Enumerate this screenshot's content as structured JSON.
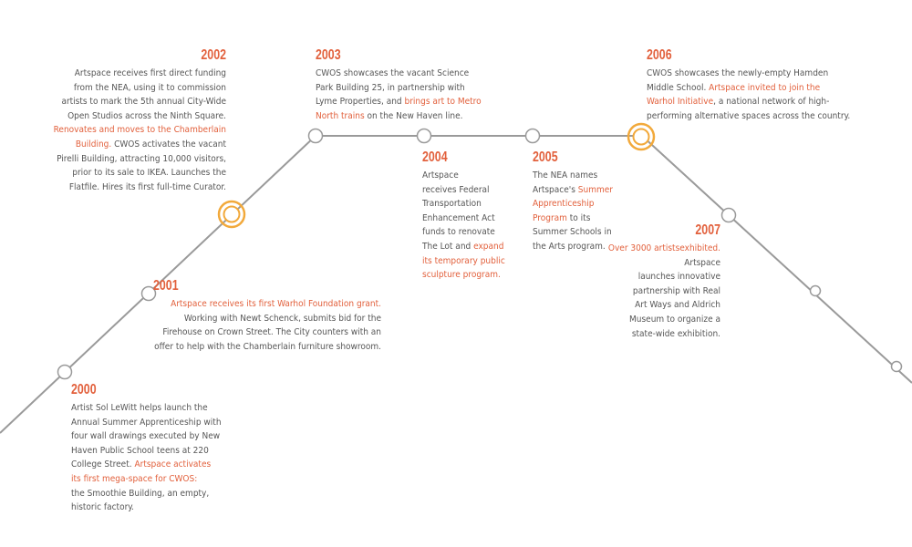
{
  "colors": {
    "line": "#9a9a9a",
    "node_stroke": "#9a9a9a",
    "node_fill": "#ffffff",
    "highlight_ring": "#f2a93b",
    "year": "#e2603c",
    "text": "#565656",
    "highlight_text": "#e2603c"
  },
  "milestones": [
    {
      "year": "2000",
      "segments": [
        {
          "t": "Artist Sol LeWitt helps launch the"
        },
        {
          "t": "Annual Summer Apprenticeship with"
        },
        {
          "t": "four wall drawings executed by New"
        },
        {
          "t": "Haven Public School teens at 220"
        },
        {
          "t": "College Street. "
        },
        {
          "t": "Artspace activates",
          "hl": true
        },
        {
          "t": "its first mega-space for CWOS:",
          "hl": true
        },
        {
          "t": "the Smoothie Building, an empty,"
        },
        {
          "t": "historic factory."
        }
      ]
    },
    {
      "year": "2001",
      "segments": [
        {
          "t": "Artspace receives its first Warhol Foundation grant.",
          "hl": true
        },
        {
          "t": "Working with Newt Schenck, submits bid for the"
        },
        {
          "t": "Firehouse on Crown Street. The City counters with an"
        },
        {
          "t": "offer to help with the Chamberlain furniture showroom."
        }
      ]
    },
    {
      "year": "2002",
      "segments": [
        {
          "t": "Artspace receives first direct funding"
        },
        {
          "t": "from the NEA, using it to commission"
        },
        {
          "t": "artists to mark the 5th annual City-Wide"
        },
        {
          "t": "Open Studios across the Ninth Square."
        },
        {
          "t": "Renovates and moves to the Chamberlain",
          "hl": true
        },
        {
          "t": "Building.",
          "hl": true
        },
        {
          "t": " CWOS activates the vacant"
        },
        {
          "t": "Pirelli Building, attracting 10,000 visitors,"
        },
        {
          "t": "prior to its sale to IKEA. Launches the"
        },
        {
          "t": "Flatfile. Hires its first full-time Curator."
        }
      ]
    },
    {
      "year": "2003",
      "segments": [
        {
          "t": "CWOS showcases the vacant Science"
        },
        {
          "t": "Park Building 25, in partnership with"
        },
        {
          "t": "Lyme Properties, and "
        },
        {
          "t": "brings art to Metro",
          "hl": true
        },
        {
          "t": "North trains",
          "hl": true
        },
        {
          "t": " on the New Haven line."
        }
      ]
    },
    {
      "year": "2004",
      "segments": [
        {
          "t": "Artspace"
        },
        {
          "t": "receives Federal"
        },
        {
          "t": "Transportation"
        },
        {
          "t": "Enhancement Act"
        },
        {
          "t": "funds to renovate"
        },
        {
          "t": "The Lot and "
        },
        {
          "t": "expand",
          "hl": true
        },
        {
          "t": "its temporary public",
          "hl": true
        },
        {
          "t": "sculpture program.",
          "hl": true
        }
      ]
    },
    {
      "year": "2005",
      "segments": [
        {
          "t": "The NEA names"
        },
        {
          "t": "Artspace's "
        },
        {
          "t": "Summer",
          "hl": true
        },
        {
          "t": "Apprenticeship",
          "hl": true
        },
        {
          "t": "Program",
          "hl": true
        },
        {
          "t": " to its"
        },
        {
          "t": "Summer Schools in"
        },
        {
          "t": "the Arts program."
        }
      ]
    },
    {
      "year": "2006",
      "segments": [
        {
          "t": "CWOS showcases the newly-empty Hamden"
        },
        {
          "t": "Middle School. "
        },
        {
          "t": "Artspace invited to join the",
          "hl": true
        },
        {
          "t": "Warhol Initiative",
          "hl": true
        },
        {
          "t": ", a national network of high-"
        },
        {
          "t": "performing alternative spaces across the country."
        }
      ]
    },
    {
      "year": "2007",
      "segments": [
        {
          "t": "Over 3000 artists",
          "hl": true
        },
        {
          "t": "exhibited.",
          "hl": true
        },
        {
          "t": " Artspace"
        },
        {
          "t": "launches innovative"
        },
        {
          "t": "partnership with Real"
        },
        {
          "t": "Art Ways and Aldrich"
        },
        {
          "t": "Museum to organize a"
        },
        {
          "t": "state-wide exhibition."
        }
      ]
    }
  ]
}
